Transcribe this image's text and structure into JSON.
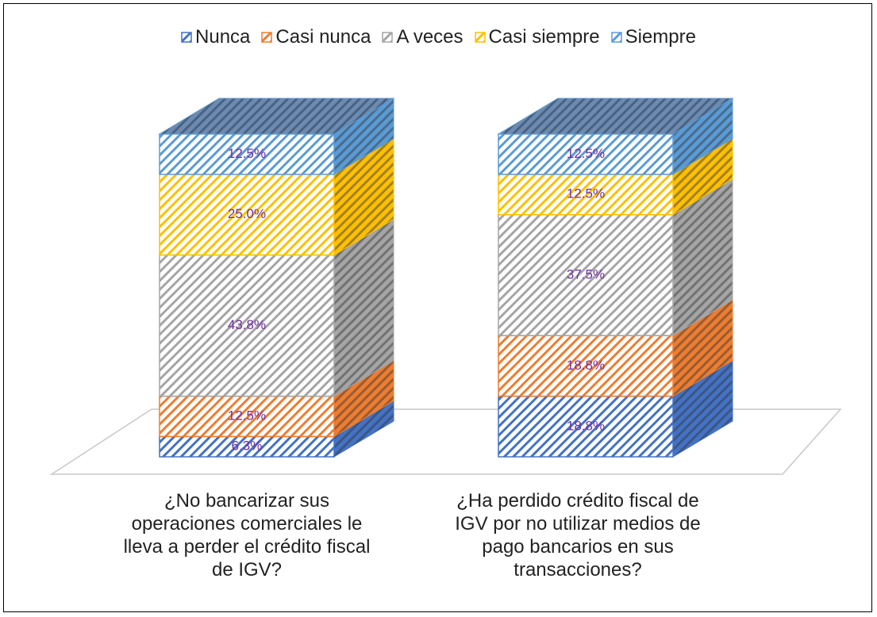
{
  "chart_data": {
    "type": "bar3d_stacked",
    "categories": [
      "¿No bancarizar sus operaciones comerciales le lleva a perder el crédito fiscal de IGV?",
      "¿Ha perdido crédito fiscal de IGV por no utilizar medios de pago bancarios en sus transacciones?"
    ],
    "series": [
      {
        "name": "Nunca",
        "color": "#4472c4",
        "values": [
          6.3,
          18.8
        ],
        "value_labels": [
          "6.3%",
          "18.8%"
        ]
      },
      {
        "name": "Casi nunca",
        "color": "#ed7d31",
        "values": [
          12.5,
          18.8
        ],
        "value_labels": [
          "12.5%",
          "18.8%"
        ]
      },
      {
        "name": "A veces",
        "color": "#a5a5a5",
        "values": [
          43.8,
          37.5
        ],
        "value_labels": [
          "43.8%",
          "37.5%"
        ]
      },
      {
        "name": "Casi siempre",
        "color": "#ffc000",
        "values": [
          25.0,
          12.5
        ],
        "value_labels": [
          "25.0%",
          "12.5%"
        ]
      },
      {
        "name": "Siempre",
        "color": "#5b9bd5",
        "values": [
          12.5,
          12.5
        ],
        "value_labels": [
          "12.5%",
          "12.5%"
        ]
      }
    ],
    "legend": "top"
  }
}
